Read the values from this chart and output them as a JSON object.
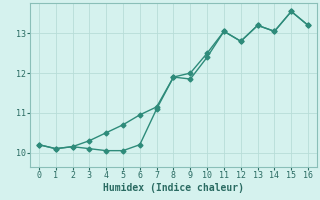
{
  "xlabel": "Humidex (Indice chaleur)",
  "background_color": "#d5f2ee",
  "line_color": "#2e8b7a",
  "grid_color": "#b8ddd8",
  "spine_color": "#8abfb8",
  "tick_color": "#2a6b62",
  "x_min": -0.5,
  "x_max": 16.5,
  "y_min": 9.65,
  "y_max": 13.75,
  "yticks": [
    10,
    11,
    12,
    13
  ],
  "xticks": [
    0,
    1,
    2,
    3,
    4,
    5,
    6,
    7,
    8,
    9,
    10,
    11,
    12,
    13,
    14,
    15,
    16
  ],
  "line1_x": [
    0,
    1,
    2,
    3,
    4,
    5,
    6,
    7,
    8,
    9,
    10,
    11,
    12,
    13,
    14,
    15,
    16
  ],
  "line1_y": [
    10.2,
    10.1,
    10.15,
    10.1,
    10.05,
    10.05,
    10.2,
    11.1,
    11.9,
    11.85,
    12.4,
    13.05,
    12.8,
    13.2,
    13.05,
    13.55,
    13.2
  ],
  "line2_x": [
    0,
    1,
    2,
    3,
    4,
    5,
    6,
    7,
    8,
    9,
    10,
    11,
    12,
    13,
    14,
    15,
    16
  ],
  "line2_y": [
    10.2,
    10.1,
    10.15,
    10.3,
    10.5,
    10.7,
    10.95,
    11.15,
    11.9,
    12.0,
    12.5,
    13.05,
    12.8,
    13.2,
    13.05,
    13.55,
    13.2
  ],
  "marker_size": 2.5,
  "line_width": 1.0,
  "tick_fontsize": 6,
  "xlabel_fontsize": 7
}
